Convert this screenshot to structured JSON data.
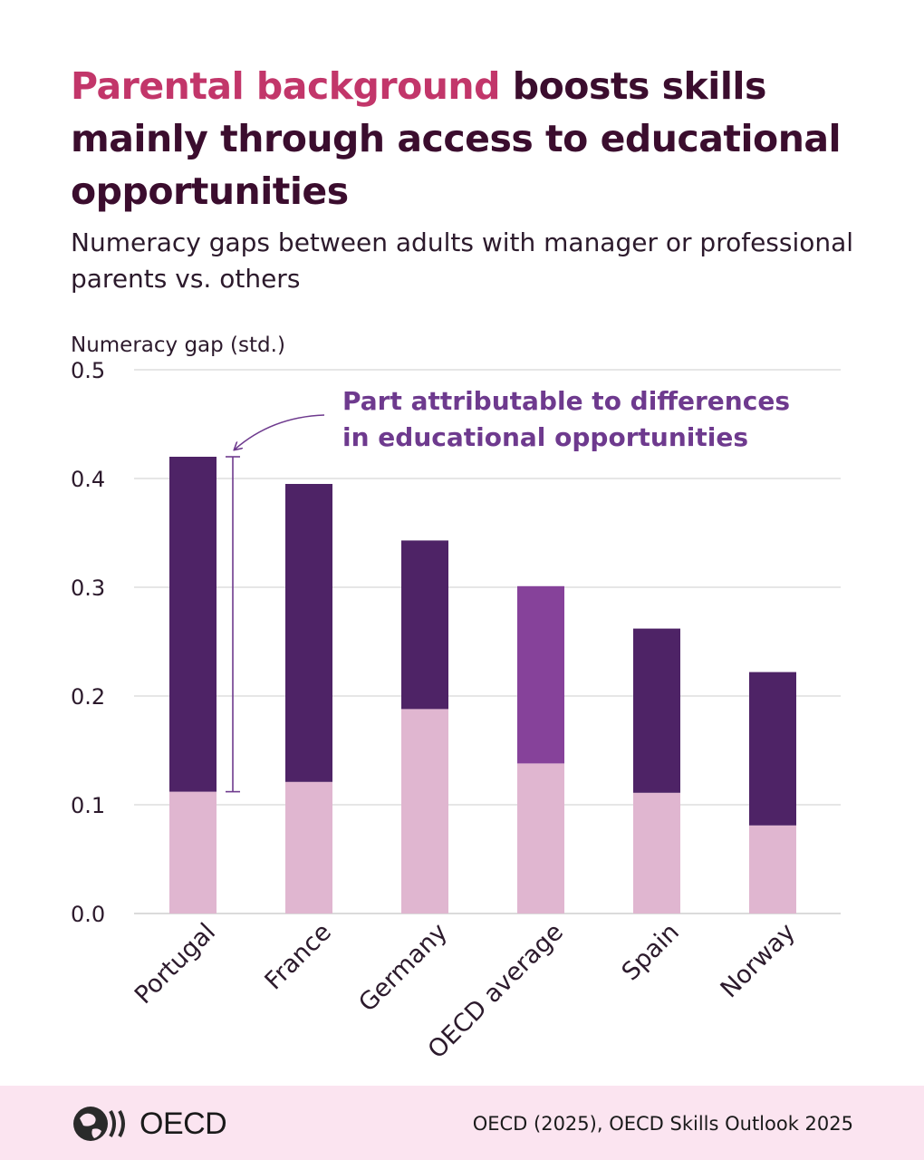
{
  "title": {
    "highlight": "Parental background",
    "rest": " boosts skills mainly through access to educational opportunities"
  },
  "subtitle": "Numeracy gaps between adults with manager or professional parents vs. others",
  "footer": {
    "logo_text": "OECD",
    "source": "OECD (2025), OECD Skills Outlook 2025"
  },
  "colors": {
    "educational_part": "#4e2366",
    "educational_part_oecd": "#86429a",
    "remaining": "#e0b6d0",
    "annotation": "#6e3a8e"
  },
  "chart_data": {
    "type": "bar",
    "stacked": true,
    "ylabel": "Numeracy gap (std.)",
    "ylim": [
      0,
      0.5
    ],
    "yticks": [
      "0.0",
      "0.1",
      "0.2",
      "0.3",
      "0.4",
      "0.5"
    ],
    "grid": true,
    "categories": [
      "Portugal",
      "France",
      "Germany",
      "OECD average",
      "Spain",
      "Norway"
    ],
    "total": [
      0.42,
      0.395,
      0.343,
      0.301,
      0.262,
      0.222
    ],
    "series": [
      {
        "values": [
          0.112,
          0.121,
          0.188,
          0.138,
          0.111,
          0.081
        ]
      },
      {
        "values": [
          0.308,
          0.274,
          0.155,
          0.163,
          0.151,
          0.141
        ]
      }
    ],
    "annotation": {
      "text_line1": "Part attributable to differences",
      "text_line2": "in educational opportunities",
      "category": "Portugal",
      "range": [
        0.112,
        0.42
      ]
    }
  }
}
